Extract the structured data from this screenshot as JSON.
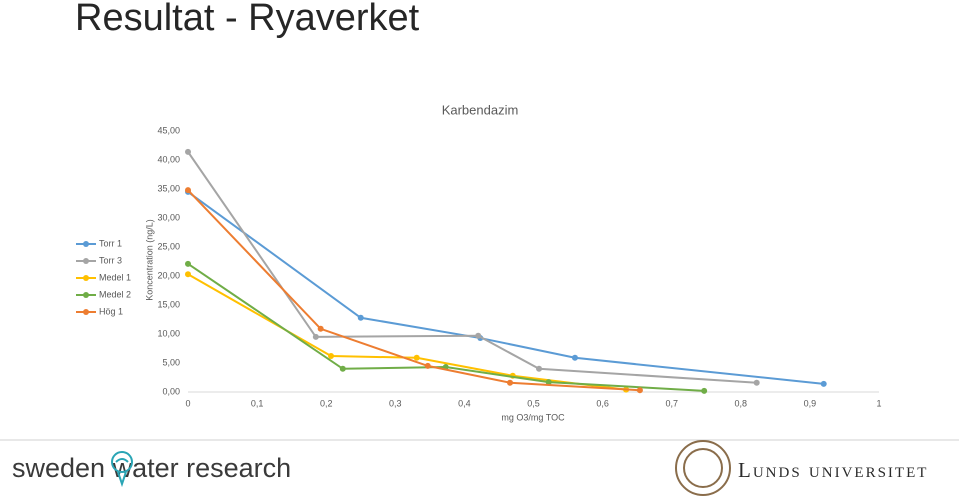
{
  "slide": {
    "title": "Resultat - Ryaverket",
    "footer_left": "sweden water research",
    "footer_right": "Lunds universitet"
  },
  "chart_data": {
    "type": "line",
    "title": "Karbendazim",
    "x_label": "mg O3/mg TOC",
    "y_label": "Koncentration (ng/L)",
    "xlim": [
      0,
      1
    ],
    "ylim": [
      0,
      45
    ],
    "xticks": [
      0,
      {
        "value": 0.1,
        "label": "0,1"
      },
      {
        "value": 0.2,
        "label": "0,2"
      },
      {
        "value": 0.3,
        "label": "0,3"
      },
      {
        "value": 0.4,
        "label": "0,4"
      },
      {
        "value": 0.5,
        "label": "0,5"
      },
      {
        "value": 0.6,
        "label": "0,6"
      },
      {
        "value": 0.7,
        "label": "0,7"
      },
      {
        "value": 0.8,
        "label": "0,8"
      },
      {
        "value": 0.9,
        "label": "0,9"
      },
      1
    ],
    "yticks": [
      {
        "value": 0,
        "label": "0,00"
      },
      {
        "value": 5,
        "label": "5,00"
      },
      {
        "value": 10,
        "label": "10,00"
      },
      {
        "value": 15,
        "label": "15,00"
      },
      {
        "value": 20,
        "label": "20,00"
      },
      {
        "value": 25,
        "label": "25,00"
      },
      {
        "value": 30,
        "label": "30,00"
      },
      {
        "value": 35,
        "label": "35,00"
      },
      {
        "value": 40,
        "label": "40,00"
      },
      {
        "value": 45,
        "label": "45,00"
      }
    ],
    "grid": false,
    "legend": "left",
    "series": [
      {
        "name": "Torr 1",
        "color": "#5b9bd5",
        "x": [
          0,
          0.25,
          0.423,
          0.56,
          0.92
        ],
        "values": [
          34.5,
          12.8,
          9.3,
          5.9,
          1.4
        ]
      },
      {
        "name": "Torr 3",
        "color": "#a5a5a5",
        "x": [
          0,
          0.185,
          0.42,
          0.508,
          0.823
        ],
        "values": [
          41.4,
          9.5,
          9.7,
          4.0,
          1.6
        ]
      },
      {
        "name": "Medel 1",
        "color": "#ffc000",
        "x": [
          0,
          0.207,
          0.331,
          0.47,
          0.634
        ],
        "values": [
          20.3,
          6.2,
          5.9,
          2.8,
          0.4
        ]
      },
      {
        "name": "Medel 2",
        "color": "#70ad47",
        "x": [
          0,
          0.224,
          0.373,
          0.522,
          0.747
        ],
        "values": [
          22.1,
          4.0,
          4.3,
          1.7,
          0.2
        ]
      },
      {
        "name": "Hög 1",
        "color": "#ed7d31",
        "x": [
          0,
          0.192,
          0.347,
          0.466,
          0.654
        ],
        "values": [
          34.8,
          10.9,
          4.5,
          1.6,
          0.3
        ]
      }
    ]
  }
}
